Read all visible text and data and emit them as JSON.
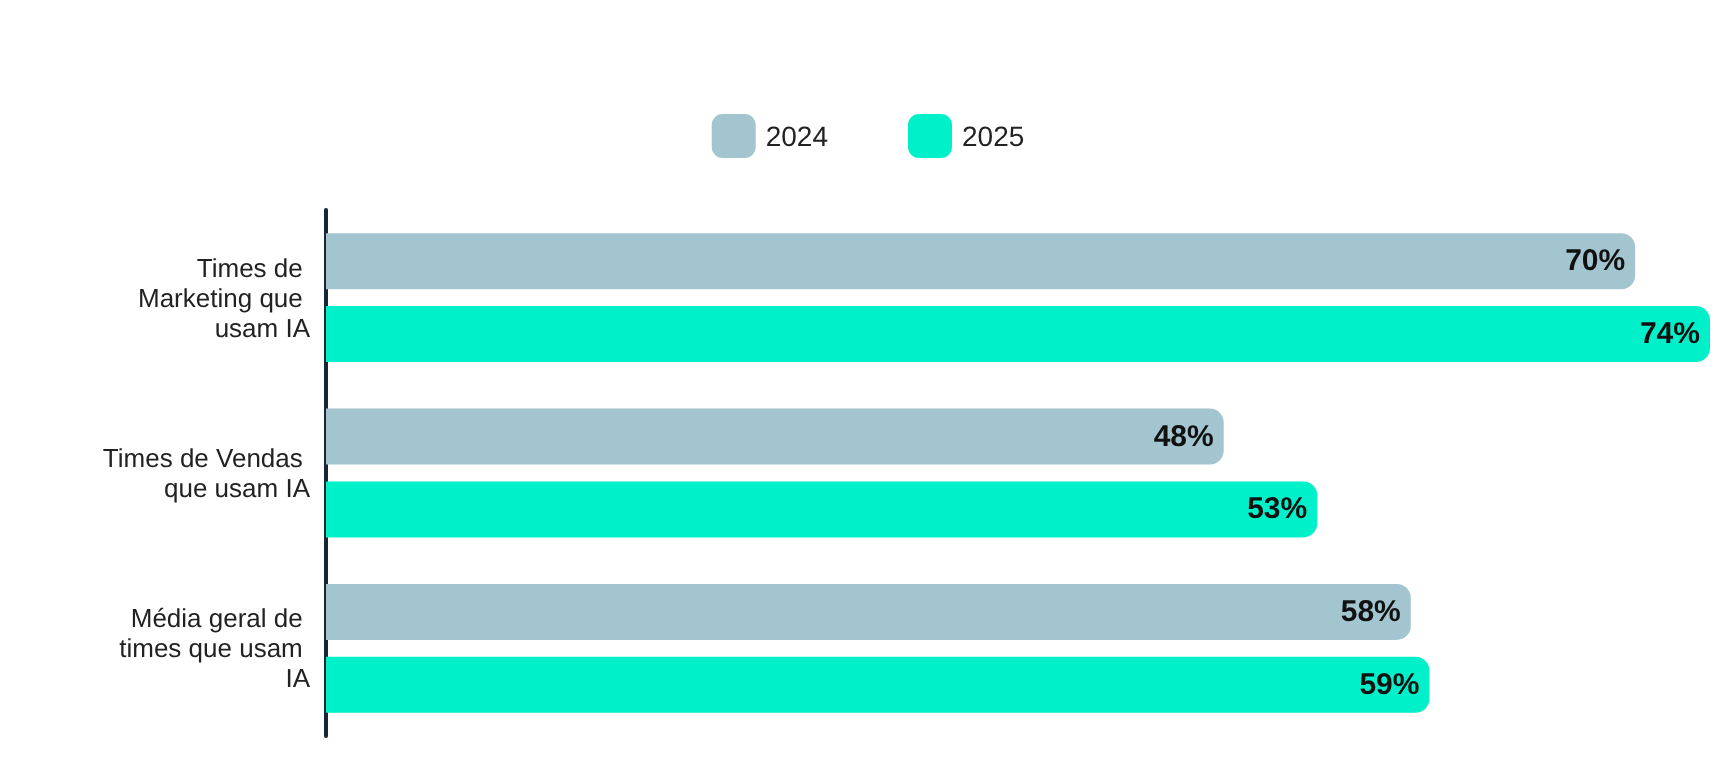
{
  "chart_data": {
    "type": "bar",
    "orientation": "horizontal",
    "categories": [
      "Times de Marketing que usam IA",
      "Times de Vendas que usam IA",
      "Média geral de times que usam IA"
    ],
    "series": [
      {
        "name": "2024",
        "color": "#a2c5cf",
        "values": [
          70,
          48,
          58
        ],
        "value_labels": [
          "70%",
          "48%",
          "58%"
        ]
      },
      {
        "name": "2025",
        "color": "#00f0c9",
        "values": [
          74,
          53,
          59
        ],
        "value_labels": [
          "74%",
          "53%",
          "59%"
        ]
      }
    ],
    "legend": "top"
  }
}
